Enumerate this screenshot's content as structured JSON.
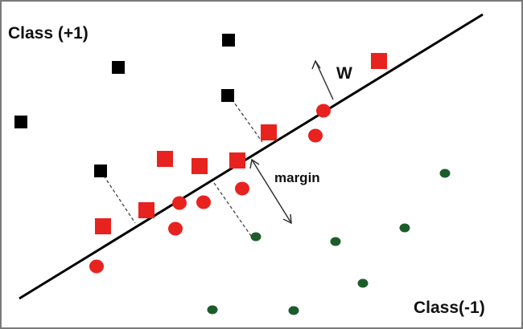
{
  "labels": {
    "class_pos": "Class (+1)",
    "class_neg": "Class(-1)",
    "normal_vector": "W",
    "margin": "margin"
  },
  "colors": {
    "class_pos_outer": "#000000",
    "support_vectors": "#e8221f",
    "class_neg_outer": "#1d5c2a",
    "line": "#000000"
  },
  "icons": {
    "square": "black square (Class +1 sample)",
    "red_square": "red square (support vector, Class +1)",
    "red_circle": "red circle (support vector, Class -1)",
    "green_dot": "green dot (Class -1 sample)"
  }
}
